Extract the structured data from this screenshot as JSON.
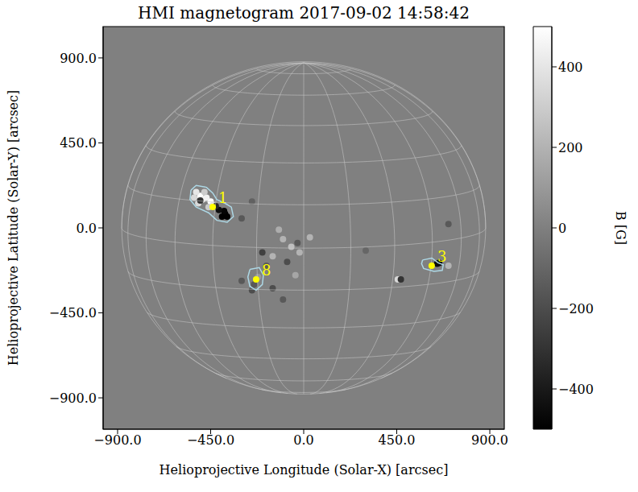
{
  "chart_data": {
    "type": "scatter",
    "title": "HMI magnetogram 2017-09-02 14:58:42",
    "x_label": "Helioprojective Longitude (Solar-X) [arcsec]",
    "y_label": "Helioprojective Latitude (Solar-Y) [arcsec]",
    "xlim": [
      -970,
      970
    ],
    "ylim": [
      -1066,
      1066
    ],
    "xticks": [
      {
        "value": -900,
        "label": "−900.0"
      },
      {
        "value": -450,
        "label": "−450.0"
      },
      {
        "value": 0,
        "label": "0.0"
      },
      {
        "value": 450,
        "label": "450.0"
      },
      {
        "value": 900,
        "label": "900.0"
      }
    ],
    "yticks": [
      {
        "value": -900,
        "label": "−900.0"
      },
      {
        "value": -450,
        "label": "−450.0"
      },
      {
        "value": 0,
        "label": "0.0"
      },
      {
        "value": 450,
        "label": "450.0"
      },
      {
        "value": 900,
        "label": "900.0"
      }
    ],
    "grid": true,
    "disk_radius": 880,
    "field": [
      {
        "x": -450,
        "y": 140,
        "B": 500
      },
      {
        "x": -470,
        "y": 160,
        "B": 450
      },
      {
        "x": -500,
        "y": 170,
        "B": 500
      },
      {
        "x": -520,
        "y": 190,
        "B": 400
      },
      {
        "x": -530,
        "y": 160,
        "B": 350
      },
      {
        "x": -480,
        "y": 190,
        "B": 300
      },
      {
        "x": -440,
        "y": 120,
        "B": 400
      },
      {
        "x": -460,
        "y": 110,
        "B": 300
      },
      {
        "x": -510,
        "y": 130,
        "B": 350
      },
      {
        "x": -490,
        "y": 150,
        "B": 450
      },
      {
        "x": -500,
        "y": 145,
        "B": -300
      },
      {
        "x": -380,
        "y": 75,
        "B": -500
      },
      {
        "x": -395,
        "y": 60,
        "B": -500
      },
      {
        "x": -370,
        "y": 60,
        "B": -500
      },
      {
        "x": -385,
        "y": 90,
        "B": -480
      },
      {
        "x": -410,
        "y": 95,
        "B": -450
      },
      {
        "x": -425,
        "y": 115,
        "B": -350
      },
      {
        "x": 655,
        "y": -185,
        "B": -500
      },
      {
        "x": 645,
        "y": -190,
        "B": -450
      },
      {
        "x": 700,
        "y": -200,
        "B": 200
      },
      {
        "x": 455,
        "y": -273,
        "B": 350
      },
      {
        "x": 470,
        "y": -273,
        "B": -300
      },
      {
        "x": -240,
        "y": -300,
        "B": -150
      },
      {
        "x": -220,
        "y": -260,
        "B": 100
      },
      {
        "x": -100,
        "y": -60,
        "B": 200
      },
      {
        "x": -60,
        "y": -100,
        "B": 250
      },
      {
        "x": -30,
        "y": -80,
        "B": -150
      },
      {
        "x": -150,
        "y": -150,
        "B": 200
      },
      {
        "x": -20,
        "y": -130,
        "B": 200
      },
      {
        "x": -80,
        "y": -180,
        "B": -200
      },
      {
        "x": -180,
        "y": -200,
        "B": -150
      },
      {
        "x": -200,
        "y": -130,
        "B": -250
      },
      {
        "x": 30,
        "y": -50,
        "B": 200
      },
      {
        "x": -250,
        "y": -330,
        "B": -200
      },
      {
        "x": -300,
        "y": -280,
        "B": -150
      },
      {
        "x": -150,
        "y": -320,
        "B": -200
      },
      {
        "x": -100,
        "y": -380,
        "B": -150
      },
      {
        "x": -40,
        "y": -250,
        "B": 150
      },
      {
        "x": -120,
        "y": -10,
        "B": 180
      },
      {
        "x": -300,
        "y": 50,
        "B": -150
      },
      {
        "x": -250,
        "y": 140,
        "B": -120
      },
      {
        "x": 300,
        "y": -120,
        "B": -100
      },
      {
        "x": 700,
        "y": 20,
        "B": -150
      }
    ],
    "regions": [
      {
        "label": "1",
        "x": -440,
        "y": 111,
        "contour": [
          [
            -545,
            200
          ],
          [
            -520,
            225
          ],
          [
            -470,
            215
          ],
          [
            -440,
            185
          ],
          [
            -420,
            150
          ],
          [
            -380,
            130
          ],
          [
            -350,
            110
          ],
          [
            -340,
            60
          ],
          [
            -370,
            30
          ],
          [
            -420,
            40
          ],
          [
            -460,
            80
          ],
          [
            -520,
            110
          ],
          [
            -550,
            150
          ],
          [
            -545,
            200
          ]
        ]
      },
      {
        "label": "8",
        "x": -230,
        "y": -273,
        "contour": [
          [
            -260,
            -220
          ],
          [
            -215,
            -210
          ],
          [
            -195,
            -250
          ],
          [
            -200,
            -300
          ],
          [
            -230,
            -330
          ],
          [
            -260,
            -310
          ],
          [
            -270,
            -260
          ],
          [
            -260,
            -220
          ]
        ]
      },
      {
        "label": "3",
        "x": 619,
        "y": -200,
        "contour": [
          [
            575,
            -170
          ],
          [
            620,
            -160
          ],
          [
            650,
            -185
          ],
          [
            675,
            -195
          ],
          [
            670,
            -225
          ],
          [
            630,
            -230
          ],
          [
            580,
            -215
          ],
          [
            570,
            -190
          ],
          [
            575,
            -170
          ]
        ]
      }
    ],
    "colorbar": {
      "label": "B [G]",
      "range": [
        -500,
        500
      ],
      "ticks": [
        {
          "value": -400,
          "label": "−400"
        },
        {
          "value": -200,
          "label": "−200"
        },
        {
          "value": 0,
          "label": "0"
        },
        {
          "value": 200,
          "label": "200"
        },
        {
          "value": 400,
          "label": "400"
        }
      ]
    }
  }
}
